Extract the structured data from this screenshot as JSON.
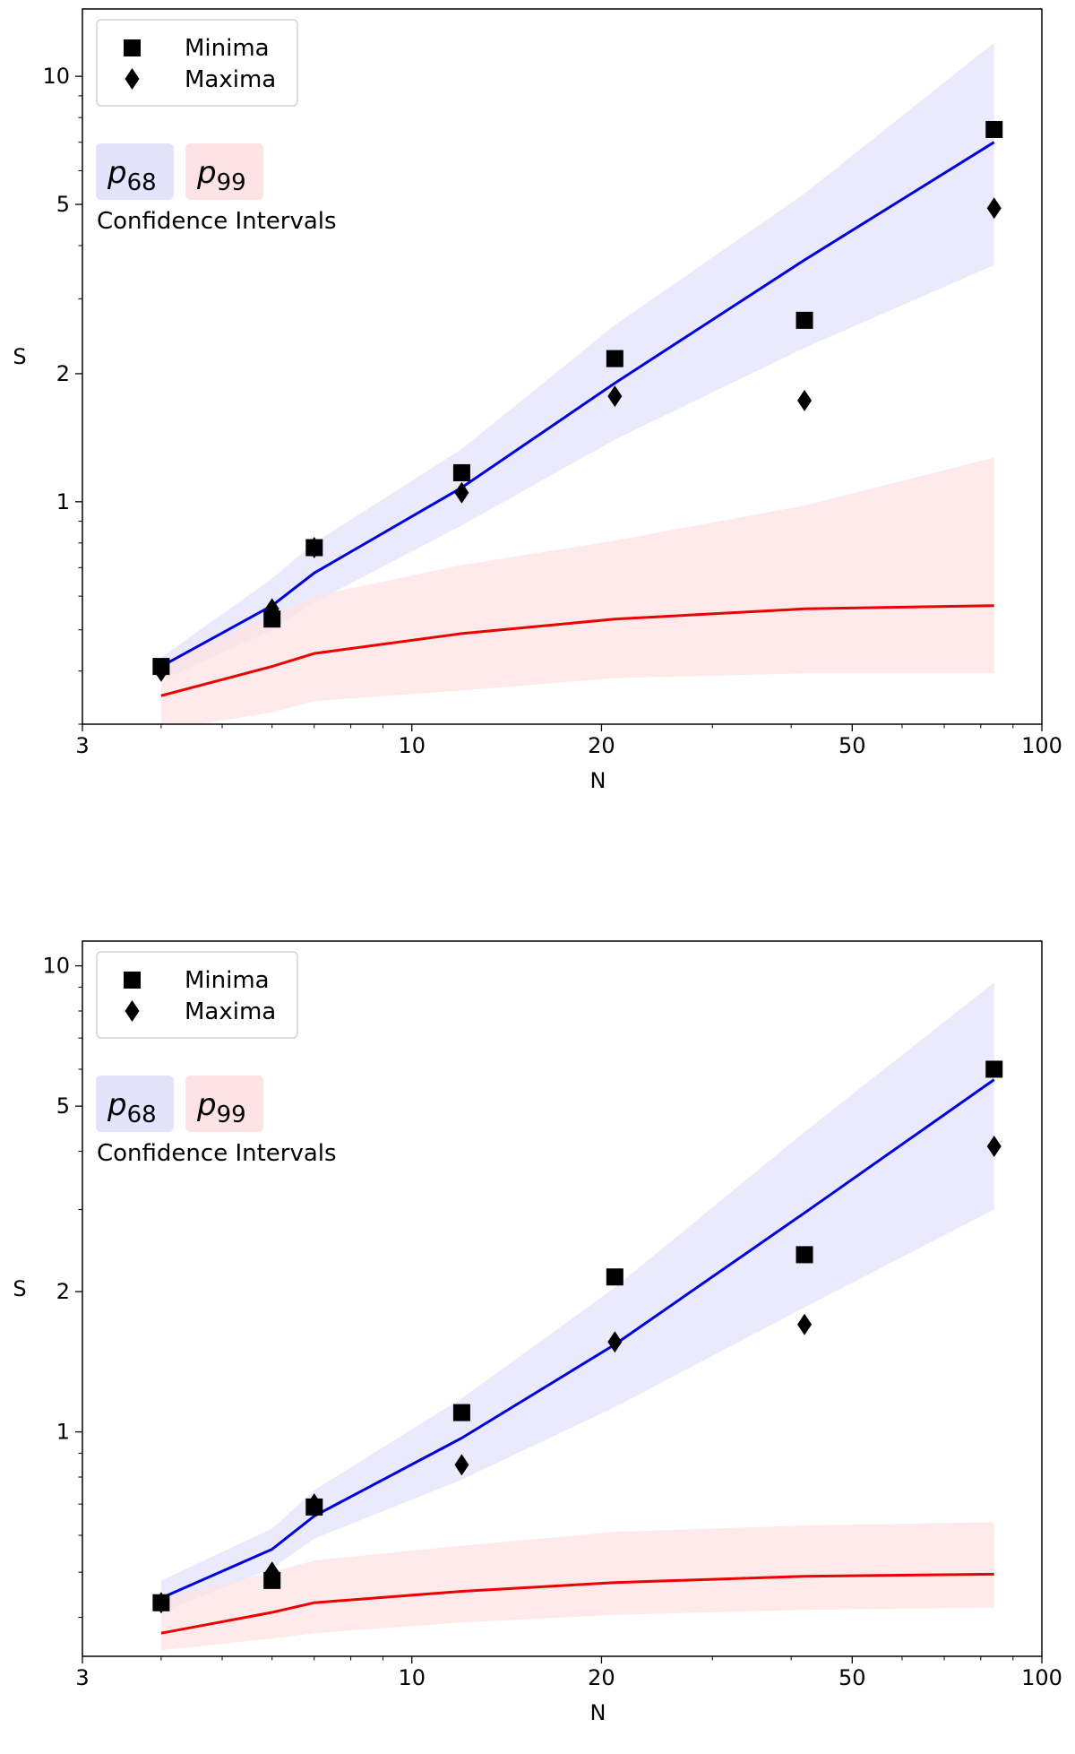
{
  "chart_data": [
    {
      "type": "scatter",
      "xlabel": "N",
      "ylabel": "S",
      "xscale": "log",
      "yscale": "log",
      "xlim": [
        3,
        100
      ],
      "ylim": [
        0.3,
        14.4
      ],
      "xticks": [
        {
          "value": 3,
          "label": "3"
        },
        {
          "value": 10,
          "label": "10"
        },
        {
          "value": 20,
          "label": "20"
        },
        {
          "value": 50,
          "label": "50"
        },
        {
          "value": 100,
          "label": "100"
        }
      ],
      "yticks": [
        {
          "value": 1,
          "label": "1"
        },
        {
          "value": 2,
          "label": "2"
        },
        {
          "value": 5,
          "label": "5"
        },
        {
          "value": 10,
          "label": "10"
        }
      ],
      "legend": {
        "position": "top-left",
        "entries": [
          "Minima",
          "Maxima"
        ]
      },
      "ci_legend": {
        "labels": [
          "p68",
          "p99"
        ],
        "caption": "Confidence Intervals"
      },
      "x": [
        4,
        6,
        7,
        12,
        21,
        42,
        84
      ],
      "series": [
        {
          "name": "Minima",
          "marker": "square",
          "values": [
            0.41,
            0.53,
            0.78,
            1.17,
            2.17,
            2.67,
            7.5
          ]
        },
        {
          "name": "Maxima",
          "marker": "diamond",
          "values": [
            0.4,
            0.56,
            0.78,
            1.05,
            1.77,
            1.73,
            4.9
          ]
        },
        {
          "name": "p68 fit",
          "kind": "line",
          "color": "#0000dd",
          "values": [
            0.41,
            0.57,
            0.68,
            1.08,
            1.9,
            3.7,
            7.0
          ]
        },
        {
          "name": "p68 band",
          "kind": "band",
          "color": "#e3e3fb",
          "lower": [
            0.38,
            0.5,
            0.58,
            0.88,
            1.4,
            2.3,
            3.6
          ],
          "upper": [
            0.43,
            0.66,
            0.8,
            1.33,
            2.6,
            5.3,
            12.0
          ]
        },
        {
          "name": "p99 median",
          "kind": "line",
          "color": "#ee0000",
          "values": [
            0.35,
            0.41,
            0.44,
            0.49,
            0.53,
            0.56,
            0.57
          ]
        },
        {
          "name": "p99 band",
          "kind": "band",
          "color": "#fde3e3",
          "lower": [
            0.29,
            0.32,
            0.34,
            0.36,
            0.385,
            0.395,
            0.395
          ],
          "upper": [
            0.42,
            0.54,
            0.6,
            0.71,
            0.81,
            0.98,
            1.27
          ]
        }
      ]
    },
    {
      "type": "scatter",
      "xlabel": "N",
      "ylabel": "S",
      "xscale": "log",
      "yscale": "log",
      "xlim": [
        3,
        100
      ],
      "ylim": [
        0.33,
        11.3
      ],
      "xticks": [
        {
          "value": 3,
          "label": "3"
        },
        {
          "value": 10,
          "label": "10"
        },
        {
          "value": 20,
          "label": "20"
        },
        {
          "value": 50,
          "label": "50"
        },
        {
          "value": 100,
          "label": "100"
        }
      ],
      "yticks": [
        {
          "value": 1,
          "label": "1"
        },
        {
          "value": 2,
          "label": "2"
        },
        {
          "value": 5,
          "label": "5"
        },
        {
          "value": 10,
          "label": "10"
        }
      ],
      "legend": {
        "position": "top-left",
        "entries": [
          "Minima",
          "Maxima"
        ]
      },
      "ci_legend": {
        "labels": [
          "p68",
          "p99"
        ],
        "caption": "Confidence Intervals"
      },
      "x": [
        4,
        6,
        7,
        12,
        21,
        42,
        84
      ],
      "series": [
        {
          "name": "Minima",
          "marker": "square",
          "values": [
            0.43,
            0.48,
            0.69,
            1.1,
            2.15,
            2.4,
            6.0
          ]
        },
        {
          "name": "Maxima",
          "marker": "diamond",
          "values": [
            0.43,
            0.5,
            0.7,
            0.85,
            1.56,
            1.7,
            4.1
          ]
        },
        {
          "name": "p68 fit",
          "kind": "line",
          "color": "#0000dd",
          "values": [
            0.44,
            0.56,
            0.66,
            0.97,
            1.54,
            2.95,
            5.7
          ]
        },
        {
          "name": "p68 band",
          "kind": "band",
          "color": "#e3e3fb",
          "lower": [
            0.41,
            0.51,
            0.59,
            0.79,
            1.13,
            1.85,
            3.0
          ],
          "upper": [
            0.48,
            0.62,
            0.75,
            1.18,
            2.04,
            4.4,
            9.2
          ]
        },
        {
          "name": "p99 median",
          "kind": "line",
          "color": "#ee0000",
          "values": [
            0.37,
            0.41,
            0.43,
            0.455,
            0.475,
            0.49,
            0.495
          ]
        },
        {
          "name": "p99 band",
          "kind": "band",
          "color": "#fde3e3",
          "lower": [
            0.34,
            0.36,
            0.37,
            0.39,
            0.405,
            0.415,
            0.42
          ],
          "upper": [
            0.44,
            0.5,
            0.53,
            0.57,
            0.61,
            0.63,
            0.64
          ]
        }
      ]
    }
  ]
}
